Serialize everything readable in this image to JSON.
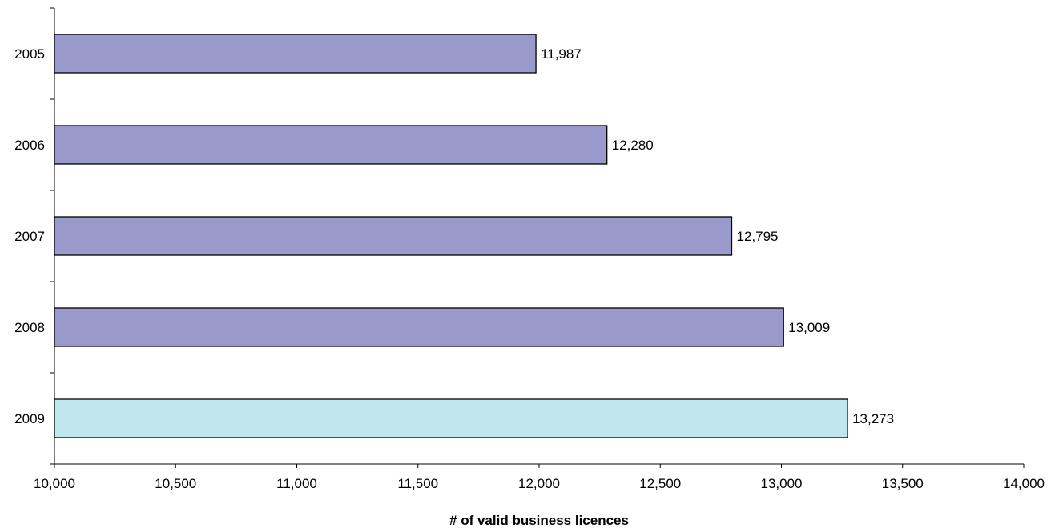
{
  "chart_data": {
    "type": "bar",
    "orientation": "horizontal",
    "title": "",
    "xlabel": "# of valid business licences",
    "ylabel": "",
    "categories": [
      "2005",
      "2006",
      "2007",
      "2008",
      "2009"
    ],
    "values": [
      11987,
      12280,
      12795,
      13009,
      13273
    ],
    "data_labels": [
      "11,987",
      "12,280",
      "12,795",
      "13,009",
      "13,273"
    ],
    "xlim": [
      10000,
      14000
    ],
    "xticks": [
      10000,
      10500,
      11000,
      11500,
      12000,
      12500,
      13000,
      13500,
      14000
    ],
    "xtick_labels": [
      "10,000",
      "10,500",
      "11,000",
      "11,500",
      "12,000",
      "12,500",
      "13,000",
      "13,500",
      "14,000"
    ],
    "bar_colors": [
      "#9999cc",
      "#9999cc",
      "#9999cc",
      "#9999cc",
      "#c0e6ee"
    ],
    "grid": false,
    "legend": "none"
  }
}
